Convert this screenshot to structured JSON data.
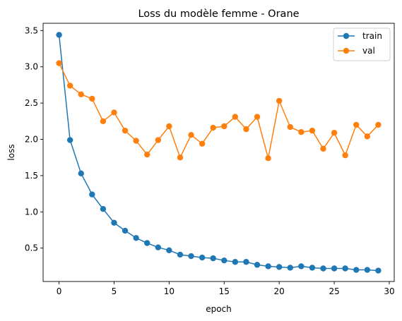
{
  "chart_data": {
    "type": "line",
    "title": "Loss du modèle femme - Orane",
    "xlabel": "epoch",
    "ylabel": "loss",
    "xlim": [
      -1.45,
      30.45
    ],
    "ylim": [
      0.04,
      3.6
    ],
    "xticks": [
      0,
      5,
      10,
      15,
      20,
      25,
      30
    ],
    "xtick_labels": [
      "0",
      "5",
      "10",
      "15",
      "20",
      "25",
      "30"
    ],
    "yticks": [
      0.5,
      1.0,
      1.5,
      2.0,
      2.5,
      3.0,
      3.5
    ],
    "ytick_labels": [
      "0.5",
      "1.0",
      "1.5",
      "2.0",
      "2.5",
      "3.0",
      "3.5"
    ],
    "grid": false,
    "legend_position": "upper right",
    "x": [
      0,
      1,
      2,
      3,
      4,
      5,
      6,
      7,
      8,
      9,
      10,
      11,
      12,
      13,
      14,
      15,
      16,
      17,
      18,
      19,
      20,
      21,
      22,
      23,
      24,
      25,
      26,
      27,
      28,
      29
    ],
    "series": [
      {
        "name": "train",
        "color": "#1f77b4",
        "values": [
          3.44,
          1.99,
          1.53,
          1.24,
          1.04,
          0.85,
          0.74,
          0.64,
          0.57,
          0.51,
          0.47,
          0.41,
          0.39,
          0.37,
          0.36,
          0.33,
          0.31,
          0.31,
          0.27,
          0.25,
          0.24,
          0.23,
          0.25,
          0.23,
          0.22,
          0.22,
          0.22,
          0.2,
          0.2,
          0.19
        ]
      },
      {
        "name": "val",
        "color": "#ff7f0e",
        "values": [
          3.05,
          2.74,
          2.62,
          2.56,
          2.25,
          2.37,
          2.12,
          1.98,
          1.79,
          1.99,
          2.18,
          1.75,
          2.06,
          1.94,
          2.16,
          2.18,
          2.31,
          2.14,
          2.31,
          1.74,
          2.53,
          2.17,
          2.1,
          2.12,
          1.87,
          2.09,
          1.78,
          2.2,
          2.04,
          2.2
        ]
      }
    ]
  }
}
